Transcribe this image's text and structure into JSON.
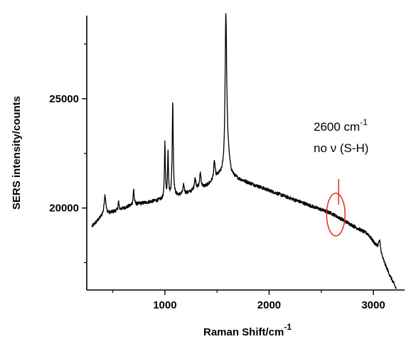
{
  "chart_data": {
    "type": "line",
    "xlabel": "Raman Shift/cm",
    "xlabel_sup": "-1",
    "ylabel": "SERS intensity/counts",
    "xlim": [
      250,
      3300
    ],
    "ylim": [
      16250,
      28800
    ],
    "x_ticks": [
      1000,
      2000,
      3000
    ],
    "x_tick_labels": [
      "1000",
      "2000",
      "3000"
    ],
    "x_minor_ticks": [
      500,
      1500,
      2500
    ],
    "y_ticks": [
      20000,
      25000
    ],
    "y_tick_labels": [
      "20000",
      "25000"
    ],
    "y_minor_ticks": [
      17500,
      22500,
      27500
    ],
    "grid": false,
    "series": [
      {
        "color": "#000000",
        "baseline": [
          [
            300,
            19150
          ],
          [
            400,
            19650
          ],
          [
            700,
            20150
          ],
          [
            1000,
            20400
          ],
          [
            1200,
            20650
          ],
          [
            1400,
            21000
          ],
          [
            1520,
            21450
          ],
          [
            1650,
            21400
          ],
          [
            1800,
            21150
          ],
          [
            2000,
            20800
          ],
          [
            2200,
            20450
          ],
          [
            2400,
            20100
          ],
          [
            2600,
            19750
          ],
          [
            2800,
            19200
          ],
          [
            2950,
            18800
          ],
          [
            3050,
            18100
          ],
          [
            3150,
            17000
          ],
          [
            3220,
            16300
          ]
        ],
        "peaks": [
          {
            "x": 425,
            "height": 900,
            "width": 10
          },
          {
            "x": 555,
            "height": 400,
            "width": 5
          },
          {
            "x": 700,
            "height": 700,
            "width": 6
          },
          {
            "x": 1000,
            "height": 2550,
            "width": 5
          },
          {
            "x": 1030,
            "height": 2100,
            "width": 5
          },
          {
            "x": 1075,
            "height": 4350,
            "width": 6
          },
          {
            "x": 1180,
            "height": 400,
            "width": 8
          },
          {
            "x": 1290,
            "height": 500,
            "width": 10
          },
          {
            "x": 1340,
            "height": 700,
            "width": 8
          },
          {
            "x": 1475,
            "height": 800,
            "width": 8
          },
          {
            "x": 1585,
            "height": 7100,
            "width": 9
          },
          {
            "x": 1605,
            "height": 900,
            "width": 18
          },
          {
            "x": 3060,
            "height": 500,
            "width": 12
          }
        ]
      }
    ],
    "annotations": [
      {
        "line1_main": "2600 cm",
        "line1_sup": "-1",
        "line2": "no ν (S-H)",
        "x": 2640,
        "y": 19700
      }
    ]
  },
  "colors": {
    "axis": "#000000",
    "series": "#000000",
    "annotation": "#e8281e"
  }
}
